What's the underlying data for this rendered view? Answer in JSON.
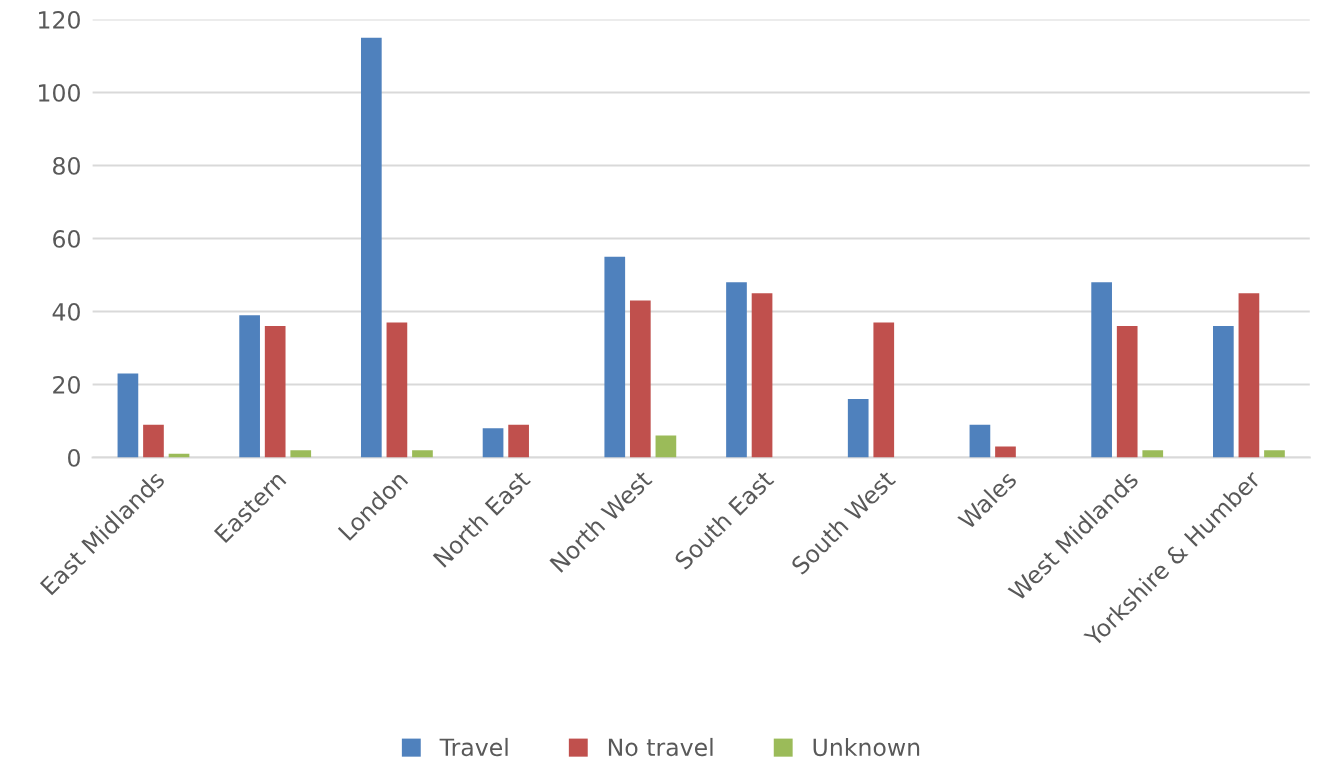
{
  "chart_data": {
    "type": "bar",
    "categories": [
      "East Midlands",
      "Eastern",
      "London",
      "North East",
      "North West",
      "South East",
      "South West",
      "Wales",
      "West Midlands",
      "Yorkshire & Humber"
    ],
    "series": [
      {
        "name": "Travel",
        "color": "#4f81bd",
        "values": [
          23,
          39,
          115,
          8,
          55,
          48,
          16,
          9,
          48,
          36
        ]
      },
      {
        "name": "No travel",
        "color": "#c0504d",
        "values": [
          9,
          36,
          37,
          9,
          43,
          45,
          37,
          3,
          36,
          45
        ]
      },
      {
        "name": "Unknown",
        "color": "#9bbb59",
        "values": [
          1,
          2,
          2,
          0,
          6,
          0,
          0,
          0,
          2,
          2
        ]
      }
    ],
    "ylim": [
      0,
      120
    ],
    "yticks": [
      0,
      20,
      40,
      60,
      80,
      100,
      120
    ],
    "grid": "y",
    "legend": "bottom"
  }
}
